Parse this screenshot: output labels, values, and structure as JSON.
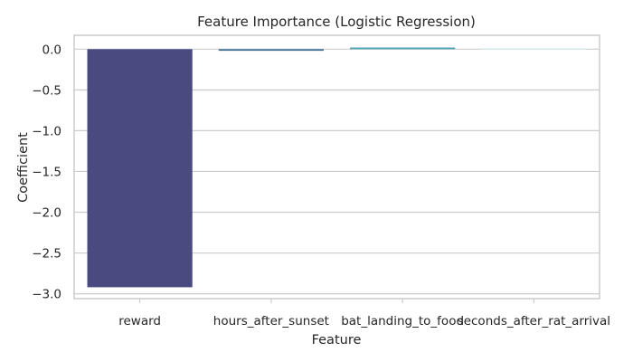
{
  "chart_data": {
    "type": "bar",
    "title": "Feature Importance (Logistic Regression)",
    "xlabel": "Feature",
    "ylabel": "Coefficient",
    "categories": [
      "reward",
      "hours_after_sunset",
      "bat_landing_to_food",
      "seconds_after_rat_arrival"
    ],
    "values": [
      -2.92,
      -0.02,
      0.02,
      0.01
    ],
    "bar_colors": [
      "#4a4a80",
      "#3e6f94",
      "#4aa3b2",
      "#d6ecee"
    ],
    "ylim": [
      -3.06,
      0.17
    ],
    "yticks": [
      0.0,
      -0.5,
      -1.0,
      -1.5,
      -2.0,
      -2.5,
      -3.0
    ],
    "ytick_labels": [
      "0.0",
      "−0.5",
      "−1.0",
      "−1.5",
      "−2.0",
      "−2.5",
      "−3.0"
    ],
    "grid": true
  }
}
